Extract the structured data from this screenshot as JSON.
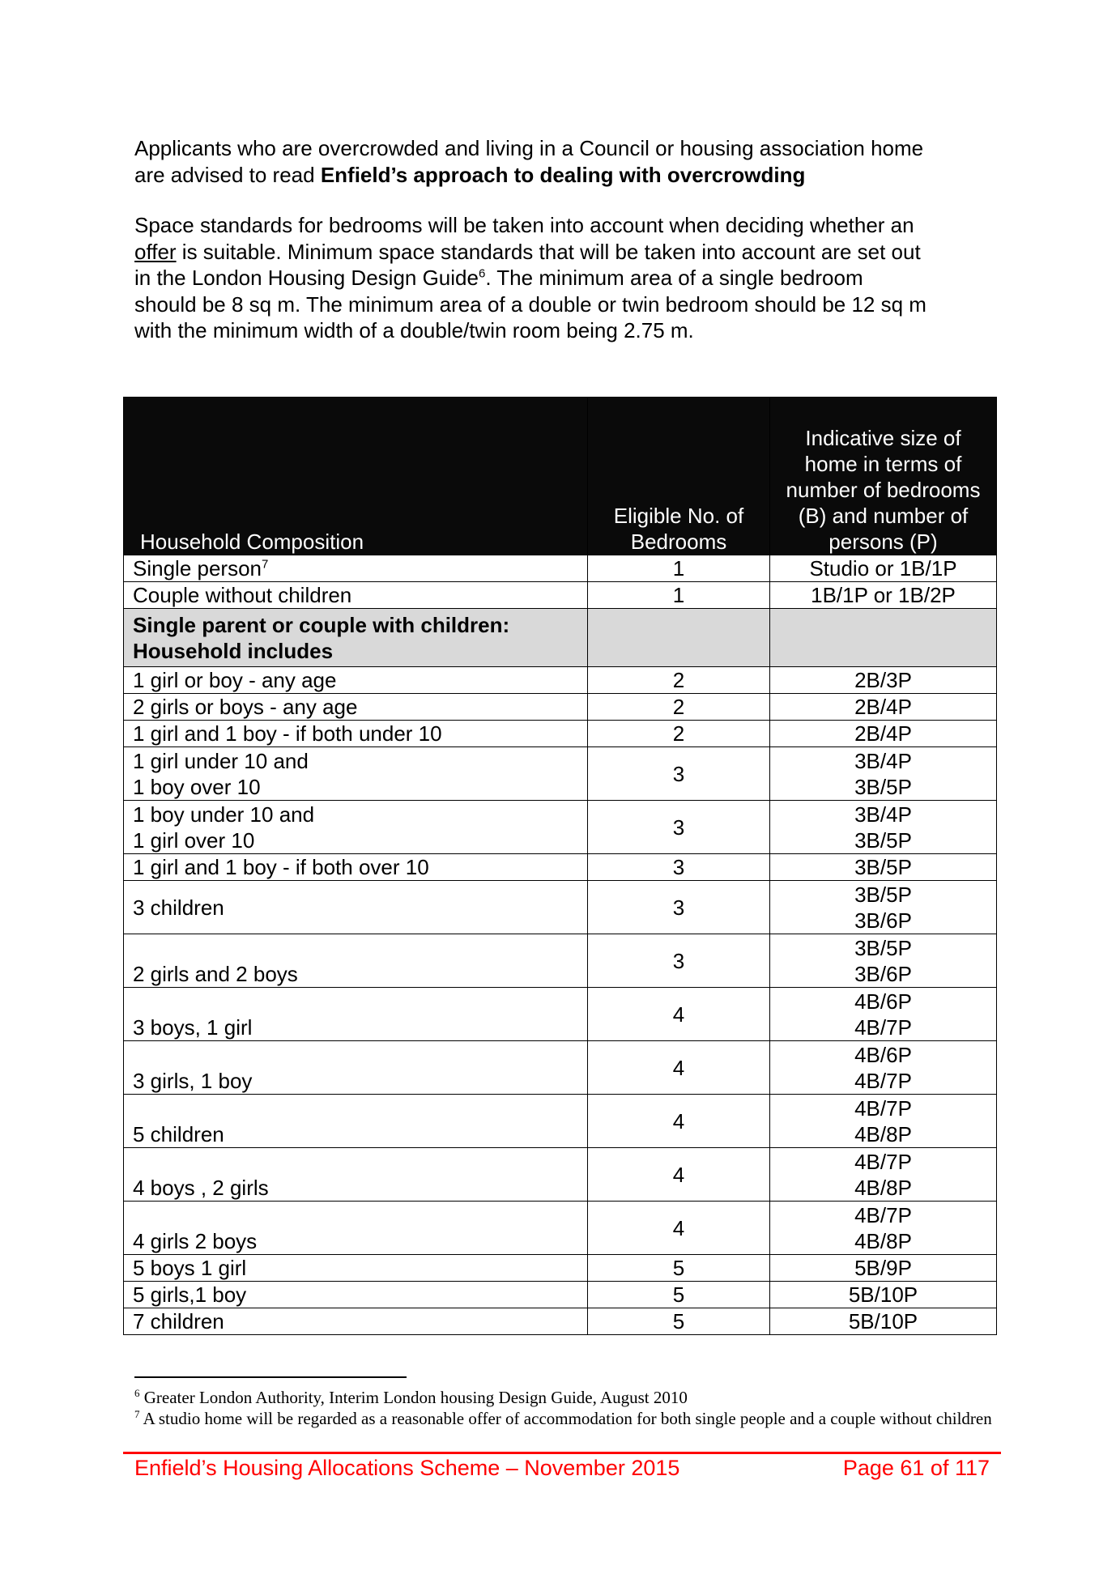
{
  "intro": {
    "line1": "Applicants who are overcrowded and living in a Council or housing association home",
    "line2_pre": "are advised to read ",
    "line2_bold": "Enfield’s approach to dealing with overcrowding"
  },
  "space": {
    "l1": "Space standards for bedrooms will be taken into account when deciding whether an",
    "l2_link": "offer",
    "l2_rest": " is suitable.  Minimum space standards that will be taken into account are set out",
    "l3": "in the London Housing Design Guide",
    "l3_sup": "6",
    "l3_rest": ".  The minimum area of a single bedroom",
    "l4": "should be 8 sq m. The minimum area of a double or twin bedroom should be 12 sq m",
    "l5": "with the minimum width of a double/twin room being 2.75 m."
  },
  "table": {
    "headers": [
      "Household Composition",
      "Eligible No. of Bedrooms",
      "Indicative size of home in terms of number of bedrooms (B) and number of persons (P)"
    ],
    "rows": [
      {
        "composition": "Single person",
        "sup": "7",
        "bedrooms": "1",
        "size": "Studio or 1B/1P"
      },
      {
        "composition": "Couple without children",
        "bedrooms": "1",
        "size": "1B/1P or 1B/2P"
      },
      {
        "composition": "Single parent or couple with children: Household includes",
        "bedrooms": "",
        "size": "",
        "group": true
      },
      {
        "composition": "1 girl or boy - any age",
        "bedrooms": "2",
        "size": "2B/3P"
      },
      {
        "composition": "2 girls or boys - any age",
        "bedrooms": "2",
        "size": "2B/4P"
      },
      {
        "composition": "1 girl and 1 boy - if both under 10",
        "bedrooms": "2",
        "size": "2B/4P"
      },
      {
        "composition": "1 girl under 10 and\n1 boy over 10",
        "bedrooms": "3",
        "size": "3B/4P\n3B/5P"
      },
      {
        "composition": "1 boy under 10 and\n1 girl over 10",
        "bedrooms": "3",
        "size": "3B/4P\n3B/5P"
      },
      {
        "composition": "1 girl and 1 boy - if both over 10",
        "bedrooms": "3",
        "size": "3B/5P"
      },
      {
        "composition": "3 children",
        "bedrooms": "3",
        "size": "3B/5P\n3B/6P"
      },
      {
        "composition": "2 girls and 2 boys",
        "bedrooms": "3",
        "size": "3B/5P\n3B/6P"
      },
      {
        "composition": "3 boys, 1 girl",
        "bedrooms": "4",
        "size": "4B/6P\n4B/7P"
      },
      {
        "composition": "3 girls, 1 boy",
        "bedrooms": "4",
        "size": "4B/6P\n4B/7P"
      },
      {
        "composition": "5 children",
        "bedrooms": "4",
        "size": "4B/7P\n4B/8P"
      },
      {
        "composition": "4 boys , 2 girls",
        "bedrooms": "4",
        "size": "4B/7P\n4B/8P"
      },
      {
        "composition": "4 girls 2 boys",
        "bedrooms": "4",
        "size": "4B/7P\n4B/8P"
      },
      {
        "composition": "5 boys 1 girl",
        "bedrooms": "5",
        "size": "5B/9P"
      },
      {
        "composition": "5 girls,1 boy",
        "bedrooms": "5",
        "size": "5B/10P"
      },
      {
        "composition": "7 children",
        "bedrooms": "5",
        "size": "5B/10P"
      }
    ]
  },
  "footnotes": [
    {
      "num": "6",
      "text": "Greater London Authority, Interim London housing Design Guide, August 2010"
    },
    {
      "num": "7",
      "text": "A studio home will be regarded as a reasonable offer of accommodation for both single people and a couple without children"
    }
  ],
  "footer": {
    "title": "Enfield’s Housing Allocations Scheme – November 2015",
    "page": "Page 61 of 117",
    "color": "#ff0000"
  }
}
